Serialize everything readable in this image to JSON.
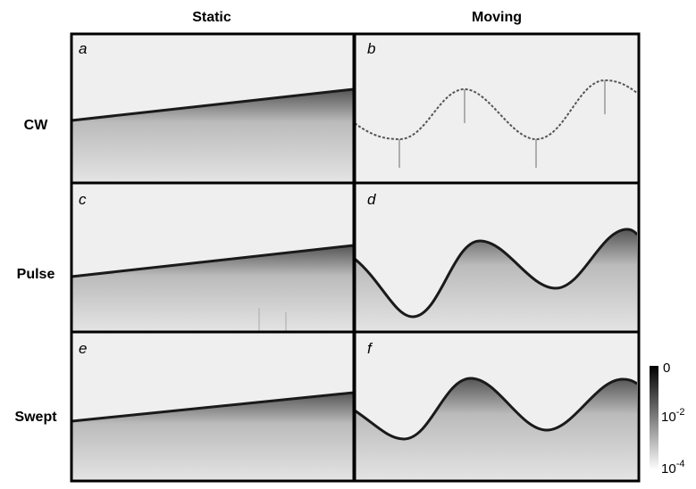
{
  "columns": [
    "Static",
    "Moving"
  ],
  "rows": [
    "CW",
    "Pulse",
    "Swept"
  ],
  "panels": [
    "a",
    "b",
    "c",
    "d",
    "e",
    "f"
  ],
  "colorbar": {
    "top": "0",
    "middle": {
      "base": "10",
      "exponent": "-2"
    },
    "bottom": {
      "base": "10",
      "exponent": "-4"
    }
  }
}
